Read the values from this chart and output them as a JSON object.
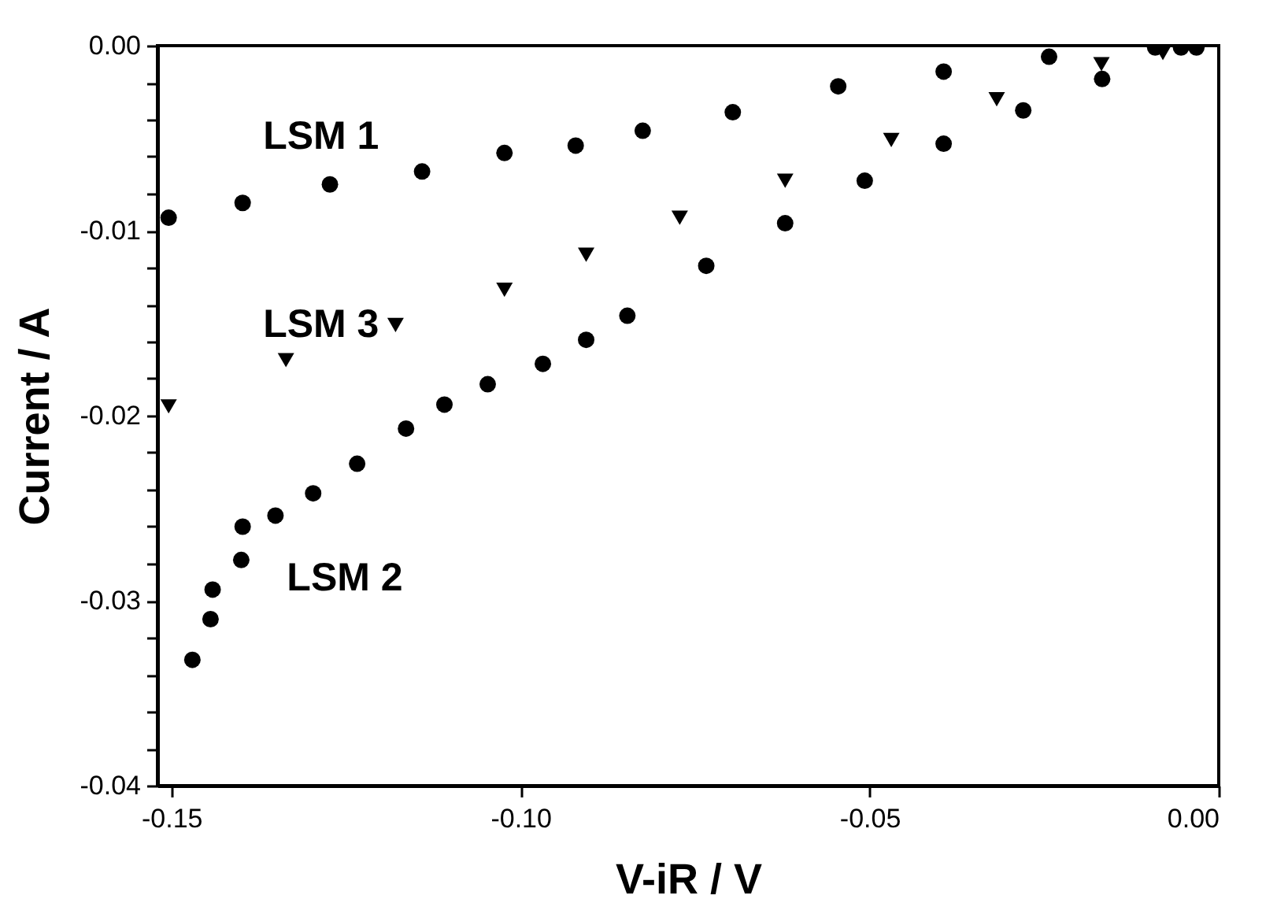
{
  "chart_data": {
    "type": "scatter",
    "xlabel": "V-iR / V",
    "ylabel": "Current / A",
    "xlim": [
      -0.152,
      0.0
    ],
    "ylim": [
      -0.04,
      0.0
    ],
    "xticks": [
      -0.15,
      {
        "value": -0.1,
        "label": "-0.10"
      },
      -0.05,
      {
        "value": 0,
        "label": "0.00"
      }
    ],
    "yticks": [
      {
        "value": 0,
        "label": "0.00"
      },
      {
        "value": -0.002,
        "label": null
      },
      {
        "value": -0.004,
        "label": null
      },
      {
        "value": -0.006,
        "label": null
      },
      {
        "value": -0.008,
        "label": null
      },
      -0.01,
      {
        "value": -0.012,
        "label": null
      },
      {
        "value": -0.014,
        "label": null
      },
      {
        "value": -0.016,
        "label": null
      },
      {
        "value": -0.018,
        "label": null
      },
      -0.02,
      {
        "value": -0.022,
        "label": null
      },
      {
        "value": -0.024,
        "label": null
      },
      {
        "value": -0.026,
        "label": null
      },
      {
        "value": -0.028,
        "label": null
      },
      -0.03,
      {
        "value": -0.032,
        "label": null
      },
      {
        "value": -0.034,
        "label": null
      },
      {
        "value": -0.036,
        "label": null
      },
      {
        "value": -0.038,
        "label": null
      },
      -0.04
    ],
    "grid": false,
    "series": [
      {
        "name": "LSM 1",
        "color": "#000000",
        "marker": "circle",
        "x": [
          -0.1504,
          -0.1398,
          -0.1273,
          -0.1141,
          -0.1023,
          -0.0921,
          -0.0825,
          -0.0696,
          -0.0545,
          -0.0394,
          -0.0243,
          -0.0091,
          -0.0032
        ],
        "values": [
          -0.0093,
          -0.0085,
          -0.0075,
          -0.0068,
          -0.0058,
          -0.0054,
          -0.0046,
          -0.0036,
          -0.0022,
          -0.0014,
          -0.0006,
          -0.0001,
          -0.0001
        ]
      },
      {
        "name": "LSM 3",
        "color": "#000000",
        "marker": "triangle",
        "x": [
          -0.1504,
          -0.1336,
          -0.1179,
          -0.1023,
          -0.0906,
          -0.0772,
          -0.0621,
          -0.0469,
          -0.0318,
          -0.0168,
          -0.008
        ],
        "values": [
          -0.0195,
          -0.017,
          -0.0151,
          -0.0132,
          -0.0113,
          -0.0093,
          -0.0073,
          -0.0051,
          -0.0029,
          -0.001,
          -0.0004
        ]
      },
      {
        "name": "LSM 2",
        "color": "#000000",
        "marker": "circle",
        "x": [
          -0.147,
          -0.1444,
          -0.1441,
          -0.14,
          -0.1398,
          -0.1351,
          -0.1297,
          -0.1234,
          -0.1164,
          -0.1109,
          -0.1047,
          -0.0968,
          -0.0906,
          -0.0847,
          -0.0734,
          -0.0621,
          -0.0507,
          -0.0394,
          -0.028,
          -0.0167,
          -0.0054
        ],
        "values": [
          -0.0332,
          -0.031,
          -0.0294,
          -0.0278,
          -0.026,
          -0.0254,
          -0.0242,
          -0.0226,
          -0.0207,
          -0.0194,
          -0.0183,
          -0.0172,
          -0.0159,
          -0.0146,
          -0.0119,
          -0.0096,
          -0.0073,
          -0.0053,
          -0.0035,
          -0.0018,
          -0.0001
        ]
      }
    ]
  }
}
